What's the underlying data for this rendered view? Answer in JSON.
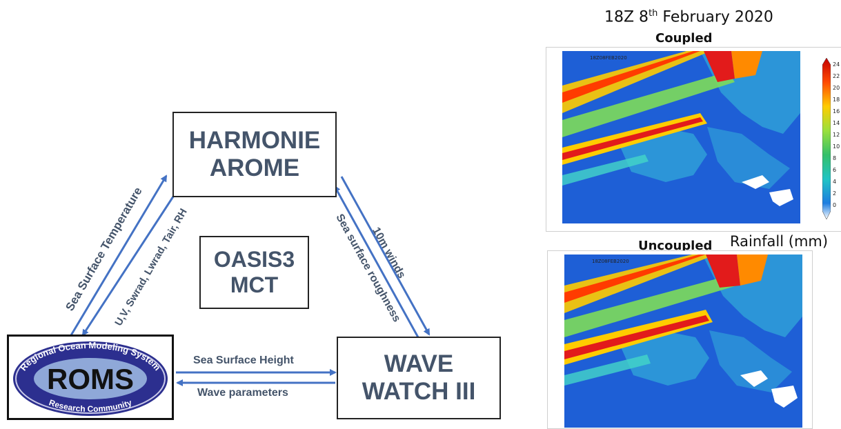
{
  "boxes": {
    "harmonie": [
      "HARMONIE",
      "AROME"
    ],
    "oasis": [
      "OASIS3",
      "MCT"
    ],
    "wave": [
      "WAVE",
      "WATCH III"
    ],
    "roms": {
      "main": "ROMS",
      "top_ring": "Regional Ocean Modeling System",
      "bottom_ring": "Research Community"
    }
  },
  "edges": {
    "sst": "Sea Surface Temperature",
    "atm_vars": "U,V, Swrad, Lwrad, Tair, RH",
    "winds": "10m winds",
    "roughness": "Sea surface roughness",
    "ssh": "Sea Surface Height",
    "wave_params": "Wave parameters"
  },
  "panel": {
    "title_main": "18Z 8",
    "title_sup": "th",
    "title_rest": " February 2020",
    "coupled": "Coupled",
    "uncoupled": "Uncoupled",
    "rainfall_label": "Rainfall (mm)",
    "map_stamp": "18Z08FEB2020",
    "colorbar_ticks": [
      "24",
      "22",
      "20",
      "18",
      "16",
      "14",
      "12",
      "10",
      "8",
      "6",
      "4",
      "2",
      "0"
    ],
    "colors": {
      "ocean": "#1e5fd6",
      "land": "#2f9fd8",
      "arrow": "#4472c4",
      "text": "#44546a"
    }
  }
}
